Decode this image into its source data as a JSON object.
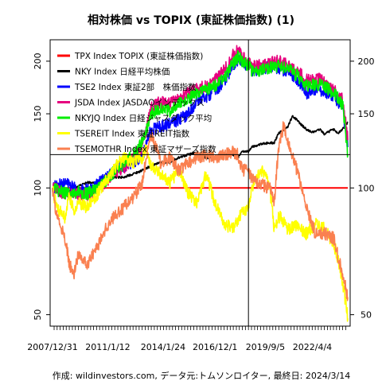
{
  "chart_data": {
    "type": "line",
    "title": "相対株価 vs TOPIX (東証株価指数) (1)",
    "footer": "作成: wildinvestors.com, データ元:トムソンロイター, 最終日: 2024/3/14",
    "scale": "log",
    "ylim": [
      48,
      220
    ],
    "y_ticks": [
      50,
      100,
      150,
      200
    ],
    "x_tick_labels": [
      "2007/12/31",
      "2011/1/12",
      "2014/1/24",
      "2016/12/1",
      "2019/9/5",
      "2022/4/4"
    ],
    "x_range": [
      "2007/12/31",
      "2024/3/14"
    ],
    "grid": false,
    "legend_position": "top-left",
    "crosshair": {
      "x": "2018/10/1",
      "y": 120
    },
    "series": [
      {
        "name": "TPX Index TOPIX (東証株価指数)",
        "color": "#ff0000",
        "points": [
          [
            "2007/12/31",
            100
          ],
          [
            "2024/3/14",
            100
          ]
        ]
      },
      {
        "name": "NKY Index 日経平均株価",
        "color": "#000000",
        "points": [
          [
            "2007/12/31",
            100
          ],
          [
            "2008/3/1",
            99
          ],
          [
            "2008/6/1",
            96
          ],
          [
            "2008/9/1",
            97
          ],
          [
            "2008/12/1",
            98
          ],
          [
            "2009/3/1",
            100
          ],
          [
            "2009/6/1",
            101
          ],
          [
            "2009/12/1",
            103
          ],
          [
            "2010/6/1",
            103
          ],
          [
            "2010/12/1",
            104
          ],
          [
            "2011/6/1",
            106
          ],
          [
            "2011/12/1",
            106
          ],
          [
            "2012/6/1",
            108
          ],
          [
            "2012/12/1",
            110
          ],
          [
            "2013/6/1",
            113
          ],
          [
            "2013/12/1",
            115
          ],
          [
            "2014/6/1",
            115
          ],
          [
            "2014/12/1",
            118
          ],
          [
            "2015/6/1",
            120
          ],
          [
            "2015/12/1",
            121
          ],
          [
            "2016/6/1",
            118
          ],
          [
            "2016/12/1",
            118
          ],
          [
            "2017/6/1",
            120
          ],
          [
            "2017/12/1",
            120
          ],
          [
            "2018/3/1",
            118
          ],
          [
            "2018/6/1",
            122
          ],
          [
            "2018/10/1",
            122
          ],
          [
            "2018/12/1",
            125
          ],
          [
            "2019/6/1",
            127
          ],
          [
            "2019/12/1",
            128
          ],
          [
            "2020/3/1",
            128
          ],
          [
            "2020/6/1",
            135
          ],
          [
            "2020/9/1",
            137
          ],
          [
            "2020/12/1",
            140
          ],
          [
            "2021/3/1",
            148
          ],
          [
            "2021/6/1",
            145
          ],
          [
            "2021/9/1",
            141
          ],
          [
            "2021/12/1",
            138
          ],
          [
            "2022/3/1",
            136
          ],
          [
            "2022/6/1",
            136
          ],
          [
            "2022/9/1",
            138
          ],
          [
            "2022/12/1",
            134
          ],
          [
            "2023/3/1",
            136
          ],
          [
            "2023/6/1",
            138
          ],
          [
            "2023/9/1",
            135
          ],
          [
            "2023/12/1",
            138
          ],
          [
            "2024/3/14",
            143
          ]
        ]
      },
      {
        "name": "TSE2 Index 東証2部　株価指数",
        "color": "#0000ff",
        "points": [
          [
            "2007/12/31",
            100
          ],
          [
            "2008/6/1",
            102
          ],
          [
            "2008/12/1",
            103
          ],
          [
            "2009/6/1",
            98
          ],
          [
            "2009/12/1",
            99
          ],
          [
            "2010/6/1",
            102
          ],
          [
            "2010/12/1",
            105
          ],
          [
            "2011/6/1",
            110
          ],
          [
            "2011/12/1",
            113
          ],
          [
            "2012/6/1",
            115
          ],
          [
            "2012/12/1",
            118
          ],
          [
            "2013/6/1",
            138
          ],
          [
            "2013/12/1",
            140
          ],
          [
            "2014/6/1",
            142
          ],
          [
            "2014/12/1",
            145
          ],
          [
            "2015/6/1",
            150
          ],
          [
            "2015/12/1",
            160
          ],
          [
            "2016/6/1",
            165
          ],
          [
            "2016/12/1",
            170
          ],
          [
            "2017/6/1",
            180
          ],
          [
            "2017/12/1",
            195
          ],
          [
            "2018/3/1",
            202
          ],
          [
            "2018/6/1",
            198
          ],
          [
            "2018/10/1",
            195
          ],
          [
            "2018/12/1",
            190
          ],
          [
            "2019/6/1",
            192
          ],
          [
            "2019/12/1",
            195
          ],
          [
            "2020/6/1",
            192
          ],
          [
            "2020/12/1",
            190
          ],
          [
            "2021/6/1",
            182
          ],
          [
            "2021/12/1",
            168
          ],
          [
            "2022/6/1",
            172
          ],
          [
            "2022/12/1",
            170
          ],
          [
            "2023/6/1",
            165
          ],
          [
            "2023/12/1",
            155
          ],
          [
            "2024/3/14",
            125
          ]
        ]
      },
      {
        "name": "JSDA Index JASDAQインデックス",
        "color": "#e6007e",
        "points": [
          [
            "2007/12/31",
            100
          ],
          [
            "2008/6/1",
            98
          ],
          [
            "2008/12/1",
            96
          ],
          [
            "2009/6/1",
            97
          ],
          [
            "2009/12/1",
            96
          ],
          [
            "2010/6/1",
            98
          ],
          [
            "2010/12/1",
            103
          ],
          [
            "2011/6/1",
            108
          ],
          [
            "2011/12/1",
            112
          ],
          [
            "2012/6/1",
            118
          ],
          [
            "2012/12/1",
            125
          ],
          [
            "2013/6/1",
            155
          ],
          [
            "2013/12/1",
            160
          ],
          [
            "2014/6/1",
            158
          ],
          [
            "2014/12/1",
            162
          ],
          [
            "2015/6/1",
            168
          ],
          [
            "2015/12/1",
            172
          ],
          [
            "2016/6/1",
            175
          ],
          [
            "2016/12/1",
            180
          ],
          [
            "2017/6/1",
            190
          ],
          [
            "2017/12/1",
            208
          ],
          [
            "2018/3/1",
            212
          ],
          [
            "2018/6/1",
            205
          ],
          [
            "2018/10/1",
            200
          ],
          [
            "2018/12/1",
            195
          ],
          [
            "2019/6/1",
            195
          ],
          [
            "2019/12/1",
            198
          ],
          [
            "2020/6/1",
            200
          ],
          [
            "2020/12/1",
            196
          ],
          [
            "2021/6/1",
            190
          ],
          [
            "2021/12/1",
            180
          ],
          [
            "2022/6/1",
            182
          ],
          [
            "2022/12/1",
            180
          ],
          [
            "2023/6/1",
            172
          ],
          [
            "2023/12/1",
            162
          ],
          [
            "2024/3/14",
            130
          ]
        ]
      },
      {
        "name": "NKYJQ Index 日経ジャスダック平均",
        "color": "#00ee00",
        "points": [
          [
            "2007/12/31",
            100
          ],
          [
            "2008/6/1",
            98
          ],
          [
            "2008/12/1",
            97
          ],
          [
            "2009/6/1",
            98
          ],
          [
            "2009/12/1",
            97
          ],
          [
            "2010/6/1",
            99
          ],
          [
            "2010/12/1",
            104
          ],
          [
            "2011/6/1",
            110
          ],
          [
            "2011/12/1",
            114
          ],
          [
            "2012/6/1",
            120
          ],
          [
            "2012/12/1",
            128
          ],
          [
            "2013/6/1",
            150
          ],
          [
            "2013/12/1",
            155
          ],
          [
            "2014/6/1",
            152
          ],
          [
            "2014/12/1",
            158
          ],
          [
            "2015/6/1",
            162
          ],
          [
            "2015/12/1",
            168
          ],
          [
            "2016/6/1",
            170
          ],
          [
            "2016/12/1",
            175
          ],
          [
            "2017/6/1",
            182
          ],
          [
            "2017/12/1",
            198
          ],
          [
            "2018/3/1",
            205
          ],
          [
            "2018/6/1",
            200
          ],
          [
            "2018/10/1",
            196
          ],
          [
            "2018/12/1",
            190
          ],
          [
            "2019/6/1",
            190
          ],
          [
            "2019/12/1",
            193
          ],
          [
            "2020/6/1",
            195
          ],
          [
            "2020/12/1",
            192
          ],
          [
            "2021/6/1",
            185
          ],
          [
            "2021/12/1",
            175
          ],
          [
            "2022/6/1",
            176
          ],
          [
            "2022/12/1",
            175
          ],
          [
            "2023/6/1",
            168
          ],
          [
            "2023/12/1",
            158
          ],
          [
            "2024/3/14",
            120
          ]
        ]
      },
      {
        "name": "TSEREIT Index 東証REIT指数",
        "color": "#ffff00",
        "points": [
          [
            "2007/12/31",
            100
          ],
          [
            "2008/3/1",
            92
          ],
          [
            "2008/6/1",
            88
          ],
          [
            "2008/9/1",
            85
          ],
          [
            "2008/12/1",
            95
          ],
          [
            "2009/3/1",
            88
          ],
          [
            "2009/6/1",
            92
          ],
          [
            "2009/12/1",
            90
          ],
          [
            "2010/6/1",
            96
          ],
          [
            "2010/12/1",
            104
          ],
          [
            "2011/6/1",
            112
          ],
          [
            "2011/12/1",
            118
          ],
          [
            "2012/6/1",
            115
          ],
          [
            "2012/12/1",
            118
          ],
          [
            "2013/3/1",
            125
          ],
          [
            "2013/6/1",
            112
          ],
          [
            "2013/12/1",
            108
          ],
          [
            "2014/6/1",
            103
          ],
          [
            "2014/12/1",
            110
          ],
          [
            "2015/6/1",
            98
          ],
          [
            "2015/12/1",
            92
          ],
          [
            "2016/3/1",
            100
          ],
          [
            "2016/6/1",
            108
          ],
          [
            "2016/12/1",
            92
          ],
          [
            "2017/6/1",
            82
          ],
          [
            "2017/12/1",
            80
          ],
          [
            "2018/6/1",
            88
          ],
          [
            "2018/10/1",
            90
          ],
          [
            "2018/12/1",
            100
          ],
          [
            "2019/3/1",
            105
          ],
          [
            "2019/6/1",
            110
          ],
          [
            "2019/9/5",
            108
          ],
          [
            "2019/12/1",
            100
          ],
          [
            "2020/3/1",
            80
          ],
          [
            "2020/6/1",
            86
          ],
          [
            "2020/12/1",
            80
          ],
          [
            "2021/6/1",
            82
          ],
          [
            "2021/12/1",
            78
          ],
          [
            "2022/6/1",
            82
          ],
          [
            "2022/12/1",
            80
          ],
          [
            "2023/6/1",
            74
          ],
          [
            "2023/9/1",
            68
          ],
          [
            "2023/12/1",
            60
          ],
          [
            "2024/3/14",
            49
          ]
        ]
      },
      {
        "name": "TSEMOTHR Index 東証マザーズ指数",
        "color": "#fa8050",
        "points": [
          [
            "2007/12/31",
            100
          ],
          [
            "2008/3/1",
            88
          ],
          [
            "2008/6/1",
            82
          ],
          [
            "2008/9/1",
            76
          ],
          [
            "2008/12/1",
            66
          ],
          [
            "2009/3/1",
            62
          ],
          [
            "2009/6/1",
            70
          ],
          [
            "2009/12/1",
            66
          ],
          [
            "2010/6/1",
            72
          ],
          [
            "2010/12/1",
            80
          ],
          [
            "2011/6/1",
            86
          ],
          [
            "2011/12/1",
            90
          ],
          [
            "2012/6/1",
            95
          ],
          [
            "2012/12/1",
            102
          ],
          [
            "2013/3/1",
            120
          ],
          [
            "2013/6/1",
            135
          ],
          [
            "2013/12/1",
            115
          ],
          [
            "2014/6/1",
            118
          ],
          [
            "2014/12/1",
            110
          ],
          [
            "2015/6/1",
            115
          ],
          [
            "2015/12/1",
            118
          ],
          [
            "2016/6/1",
            120
          ],
          [
            "2016/12/1",
            118
          ],
          [
            "2017/6/1",
            120
          ],
          [
            "2017/12/1",
            122
          ],
          [
            "2018/3/1",
            120
          ],
          [
            "2018/6/1",
            110
          ],
          [
            "2018/10/1",
            112
          ],
          [
            "2018/12/1",
            105
          ],
          [
            "2019/6/1",
            102
          ],
          [
            "2019/12/1",
            100
          ],
          [
            "2020/3/1",
            92
          ],
          [
            "2020/6/1",
            125
          ],
          [
            "2020/9/1",
            140
          ],
          [
            "2020/12/1",
            128
          ],
          [
            "2021/6/1",
            110
          ],
          [
            "2021/12/1",
            90
          ],
          [
            "2022/6/1",
            78
          ],
          [
            "2022/12/1",
            78
          ],
          [
            "2023/6/1",
            76
          ],
          [
            "2023/12/1",
            62
          ],
          [
            "2024/3/14",
            55
          ]
        ]
      }
    ]
  }
}
